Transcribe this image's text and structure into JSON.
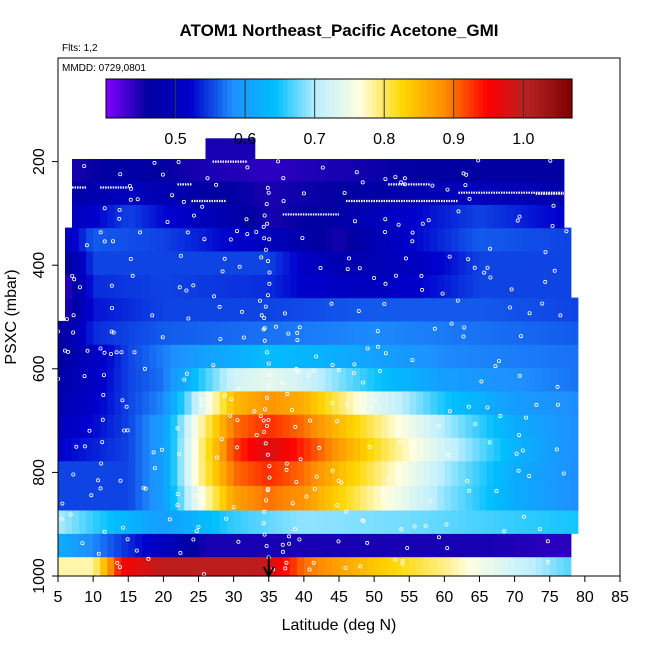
{
  "chart_data": {
    "type": "heatmap",
    "title": "ATOM1 Northeast_Pacific Acetone_GMI",
    "info_lines": [
      "Flts: 1,2",
      "MMDD: 0729,0801"
    ],
    "xlabel": "Latitude (deg N)",
    "ylabel": "PSXC (mbar)",
    "xlim": [
      5,
      85
    ],
    "ylim": [
      1000,
      0
    ],
    "x_ticks": [
      5,
      10,
      15,
      20,
      25,
      30,
      35,
      40,
      45,
      50,
      55,
      60,
      65,
      70,
      75,
      80,
      85
    ],
    "y_ticks": [
      200,
      400,
      600,
      800,
      1000
    ],
    "colorbar": {
      "range": [
        0.4,
        1.07
      ],
      "ticks": [
        0.5,
        0.6,
        0.7,
        0.8,
        0.9,
        1.0
      ],
      "tick_labels": [
        "0.5",
        "0.6",
        "0.7",
        "0.8",
        "0.9",
        "1.0"
      ],
      "stops": [
        "#8000ff",
        "#0000a0",
        "#0000cd",
        "#1e90ff",
        "#00bfff",
        "#bfefff",
        "#ffffe0",
        "#ffd700",
        "#ff8c00",
        "#ff0000",
        "#b22222",
        "#800000"
      ]
    },
    "marker_latitude": 35,
    "pressure_levels": [
      985,
      940,
      895,
      850,
      800,
      755,
      710,
      665,
      620,
      575,
      530,
      485,
      440,
      395,
      350,
      305,
      260,
      215,
      175
    ],
    "rows": [
      {
        "p": 985,
        "xmin": 5,
        "xmax": 78,
        "v": [
          [
            5,
            0.78
          ],
          [
            10,
            0.78
          ],
          [
            14,
            0.95
          ],
          [
            20,
            1.0
          ],
          [
            28,
            1.0
          ],
          [
            34,
            1.0
          ],
          [
            40,
            0.9
          ],
          [
            50,
            0.84
          ],
          [
            60,
            0.79
          ],
          [
            70,
            0.72
          ],
          [
            78,
            0.67
          ]
        ]
      },
      {
        "p": 940,
        "xmin": 5,
        "xmax": 78,
        "v": [
          [
            5,
            0.62
          ],
          [
            10,
            0.58
          ],
          [
            20,
            0.5
          ],
          [
            26,
            0.45
          ],
          [
            35,
            0.45
          ],
          [
            50,
            0.45
          ],
          [
            65,
            0.45
          ],
          [
            78,
            0.44
          ]
        ]
      },
      {
        "p": 895,
        "xmin": 5,
        "xmax": 79,
        "v": [
          [
            5,
            0.7
          ],
          [
            10,
            0.66
          ],
          [
            20,
            0.6
          ],
          [
            30,
            0.66
          ],
          [
            40,
            0.69
          ],
          [
            55,
            0.68
          ],
          [
            70,
            0.66
          ],
          [
            79,
            0.65
          ]
        ]
      },
      {
        "p": 850,
        "xmin": 5,
        "xmax": 79,
        "v": [
          [
            5,
            0.55
          ],
          [
            15,
            0.55
          ],
          [
            20,
            0.6
          ],
          [
            25,
            0.75
          ],
          [
            30,
            0.87
          ],
          [
            35,
            0.9
          ],
          [
            40,
            0.88
          ],
          [
            50,
            0.78
          ],
          [
            60,
            0.69
          ],
          [
            70,
            0.62
          ],
          [
            79,
            0.58
          ]
        ]
      },
      {
        "p": 800,
        "xmin": 5,
        "xmax": 79,
        "v": [
          [
            5,
            0.55
          ],
          [
            15,
            0.55
          ],
          [
            20,
            0.6
          ],
          [
            25,
            0.78
          ],
          [
            30,
            0.9
          ],
          [
            35,
            0.93
          ],
          [
            40,
            0.9
          ],
          [
            50,
            0.8
          ],
          [
            60,
            0.7
          ],
          [
            70,
            0.62
          ],
          [
            79,
            0.58
          ]
        ]
      },
      {
        "p": 755,
        "xmin": 5,
        "xmax": 79,
        "v": [
          [
            5,
            0.52
          ],
          [
            15,
            0.55
          ],
          [
            20,
            0.6
          ],
          [
            25,
            0.78
          ],
          [
            30,
            0.92
          ],
          [
            35,
            0.98
          ],
          [
            40,
            0.93
          ],
          [
            50,
            0.82
          ],
          [
            60,
            0.72
          ],
          [
            70,
            0.63
          ],
          [
            79,
            0.58
          ]
        ]
      },
      {
        "p": 710,
        "xmin": 5,
        "xmax": 79,
        "v": [
          [
            5,
            0.5
          ],
          [
            15,
            0.55
          ],
          [
            20,
            0.6
          ],
          [
            25,
            0.77
          ],
          [
            30,
            0.9
          ],
          [
            35,
            0.93
          ],
          [
            40,
            0.9
          ],
          [
            50,
            0.8
          ],
          [
            60,
            0.7
          ],
          [
            70,
            0.62
          ],
          [
            79,
            0.58
          ]
        ]
      },
      {
        "p": 665,
        "xmin": 5,
        "xmax": 79,
        "v": [
          [
            5,
            0.48
          ],
          [
            15,
            0.55
          ],
          [
            20,
            0.58
          ],
          [
            25,
            0.72
          ],
          [
            30,
            0.85
          ],
          [
            35,
            0.88
          ],
          [
            40,
            0.86
          ],
          [
            50,
            0.74
          ],
          [
            60,
            0.65
          ],
          [
            70,
            0.6
          ],
          [
            79,
            0.58
          ]
        ]
      },
      {
        "p": 620,
        "xmin": 5,
        "xmax": 79,
        "v": [
          [
            5,
            0.47
          ],
          [
            15,
            0.55
          ],
          [
            20,
            0.57
          ],
          [
            25,
            0.65
          ],
          [
            30,
            0.72
          ],
          [
            35,
            0.74
          ],
          [
            40,
            0.72
          ],
          [
            50,
            0.65
          ],
          [
            60,
            0.6
          ],
          [
            79,
            0.57
          ]
        ]
      },
      {
        "p": 575,
        "xmin": 5,
        "xmax": 79,
        "v": [
          [
            5,
            0.46
          ],
          [
            15,
            0.55
          ],
          [
            25,
            0.6
          ],
          [
            35,
            0.64
          ],
          [
            45,
            0.62
          ],
          [
            60,
            0.58
          ],
          [
            79,
            0.57
          ]
        ]
      },
      {
        "p": 530,
        "xmin": 5,
        "xmax": 79,
        "v": [
          [
            5,
            0.45
          ],
          [
            10,
            0.54
          ],
          [
            20,
            0.56
          ],
          [
            35,
            0.57
          ],
          [
            50,
            0.58
          ],
          [
            65,
            0.57
          ],
          [
            79,
            0.56
          ]
        ]
      },
      {
        "p": 485,
        "xmin": 6,
        "xmax": 79,
        "v": [
          [
            6,
            0.44
          ],
          [
            10,
            0.53
          ],
          [
            20,
            0.55
          ],
          [
            35,
            0.55
          ],
          [
            50,
            0.56
          ],
          [
            65,
            0.56
          ],
          [
            79,
            0.55
          ]
        ]
      },
      {
        "p": 440,
        "xmin": 6,
        "xmax": 78,
        "v": [
          [
            6,
            0.43
          ],
          [
            10,
            0.54
          ],
          [
            20,
            0.55
          ],
          [
            35,
            0.54
          ],
          [
            40,
            0.52
          ],
          [
            50,
            0.5
          ],
          [
            65,
            0.55
          ],
          [
            78,
            0.55
          ]
        ]
      },
      {
        "p": 395,
        "xmin": 6,
        "xmax": 78,
        "v": [
          [
            6,
            0.45
          ],
          [
            10,
            0.55
          ],
          [
            20,
            0.55
          ],
          [
            35,
            0.55
          ],
          [
            45,
            0.48
          ],
          [
            55,
            0.5
          ],
          [
            65,
            0.55
          ],
          [
            78,
            0.55
          ]
        ]
      },
      {
        "p": 350,
        "xmin": 6,
        "xmax": 78,
        "v": [
          [
            6,
            0.5
          ],
          [
            10,
            0.56
          ],
          [
            20,
            0.55
          ],
          [
            30,
            0.52
          ],
          [
            35,
            0.5
          ],
          [
            45,
            0.45
          ],
          [
            55,
            0.52
          ],
          [
            65,
            0.56
          ],
          [
            78,
            0.55
          ]
        ]
      },
      {
        "p": 305,
        "xmin": 7,
        "xmax": 77,
        "v": [
          [
            7,
            0.5
          ],
          [
            15,
            0.55
          ],
          [
            25,
            0.5
          ],
          [
            35,
            0.45
          ],
          [
            45,
            0.47
          ],
          [
            55,
            0.52
          ],
          [
            65,
            0.55
          ],
          [
            77,
            0.52
          ]
        ]
      },
      {
        "p": 260,
        "xmin": 7,
        "xmax": 77,
        "v": [
          [
            7,
            0.47
          ],
          [
            15,
            0.5
          ],
          [
            25,
            0.47
          ],
          [
            35,
            0.45
          ],
          [
            45,
            0.46
          ],
          [
            55,
            0.48
          ],
          [
            65,
            0.5
          ],
          [
            77,
            0.48
          ]
        ]
      },
      {
        "p": 215,
        "xmin": 7,
        "xmax": 77,
        "v": [
          [
            7,
            0.45
          ],
          [
            15,
            0.47
          ],
          [
            25,
            0.45
          ],
          [
            35,
            0.44
          ],
          [
            45,
            0.45
          ],
          [
            55,
            0.46
          ],
          [
            65,
            0.46
          ],
          [
            77,
            0.46
          ]
        ]
      },
      {
        "p": 175,
        "xmin": 26,
        "xmax": 33,
        "v": [
          [
            26,
            0.45
          ],
          [
            33,
            0.45
          ]
        ]
      }
    ]
  }
}
